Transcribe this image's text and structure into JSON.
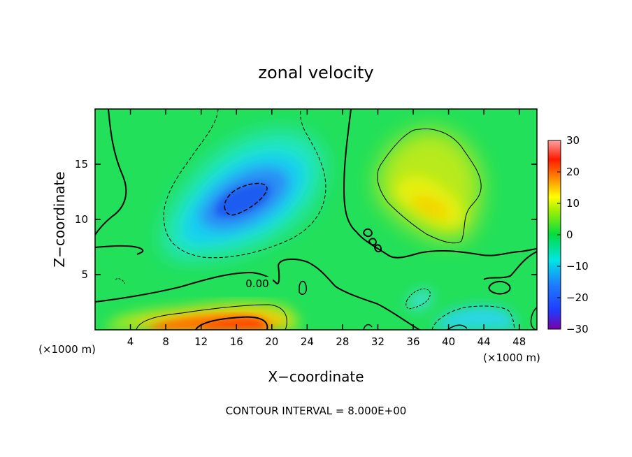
{
  "chart_data": {
    "type": "heatmap",
    "title": "zonal velocity",
    "xlabel": "X−coordinate",
    "ylabel": "Z−coordinate",
    "x_unit_left": "(×1000 m)",
    "x_unit_right": "(×1000 m)",
    "xlim": [
      0,
      50
    ],
    "ylim": [
      0,
      20
    ],
    "x_ticks": [
      4,
      8,
      12,
      16,
      20,
      24,
      28,
      32,
      36,
      40,
      44,
      48
    ],
    "y_ticks": [
      5,
      10,
      15
    ],
    "contour_interval_text": "CONTOUR INTERVAL = 8.000E+00",
    "contour_label": "0.00",
    "colorbar": {
      "min": -30,
      "max": 30,
      "ticks": [
        30,
        20,
        10,
        0,
        -10,
        -20,
        -30
      ],
      "stops": [
        {
          "v": -30,
          "color": "#7a00a8"
        },
        {
          "v": -24,
          "color": "#1f3cff"
        },
        {
          "v": -16,
          "color": "#1e7bff"
        },
        {
          "v": -8,
          "color": "#00e5e5"
        },
        {
          "v": 0,
          "color": "#00dd40"
        },
        {
          "v": 8,
          "color": "#a6f000"
        },
        {
          "v": 12,
          "color": "#ffff00"
        },
        {
          "v": 18,
          "color": "#ff8a00"
        },
        {
          "v": 24,
          "color": "#ff1a00"
        },
        {
          "v": 30,
          "color": "#ffa0a0"
        }
      ]
    },
    "features": [
      {
        "kind": "min",
        "x": 16.5,
        "z": 12.3,
        "value": -20
      },
      {
        "kind": "max",
        "x": 16,
        "z": 1.0,
        "value": 20
      },
      {
        "kind": "max",
        "x": 38,
        "z": 11.5,
        "value": 13
      },
      {
        "kind": "min",
        "x": 41,
        "z": 0.7,
        "value": -7
      }
    ]
  }
}
